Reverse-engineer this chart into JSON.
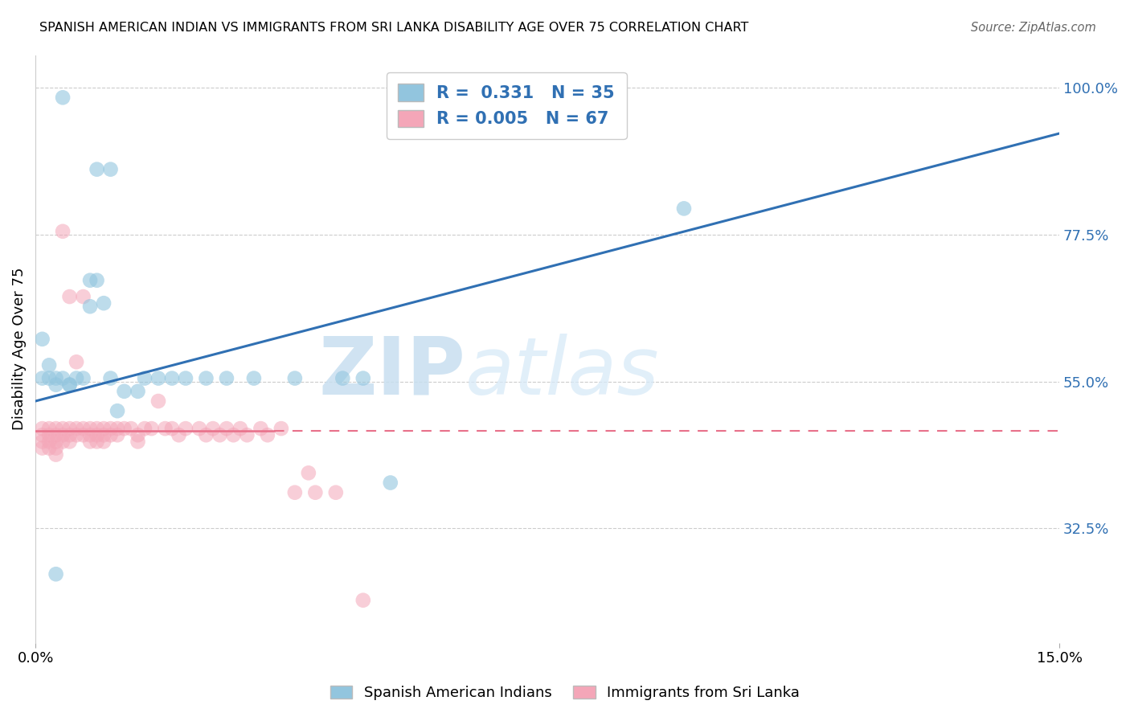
{
  "title": "SPANISH AMERICAN INDIAN VS IMMIGRANTS FROM SRI LANKA DISABILITY AGE OVER 75 CORRELATION CHART",
  "source": "Source: ZipAtlas.com",
  "ylabel_label": "Disability Age Over 75",
  "xmin": 0.0,
  "xmax": 0.15,
  "ymin": 0.15,
  "ymax": 1.05,
  "blue_R": 0.331,
  "blue_N": 35,
  "pink_R": 0.005,
  "pink_N": 67,
  "blue_color": "#92c5de",
  "pink_color": "#f4a6b8",
  "blue_line_color": "#3070b3",
  "pink_line_color": "#e8708a",
  "watermark_zip": "ZIP",
  "watermark_atlas": "atlas",
  "legend_label_blue": "Spanish American Indians",
  "legend_label_pink": "Immigrants from Sri Lanka",
  "ytick_vals": [
    1.0,
    0.775,
    0.55,
    0.325
  ],
  "blue_scatter_x": [
    0.004,
    0.009,
    0.011,
    0.001,
    0.002,
    0.001,
    0.002,
    0.003,
    0.003,
    0.004,
    0.005,
    0.005,
    0.006,
    0.007,
    0.008,
    0.008,
    0.009,
    0.01,
    0.011,
    0.012,
    0.013,
    0.015,
    0.016,
    0.018,
    0.02,
    0.022,
    0.025,
    0.028,
    0.032,
    0.038,
    0.045,
    0.048,
    0.052,
    0.095,
    0.003
  ],
  "blue_scatter_y": [
    0.985,
    0.875,
    0.875,
    0.615,
    0.575,
    0.555,
    0.555,
    0.555,
    0.545,
    0.555,
    0.545,
    0.545,
    0.555,
    0.555,
    0.665,
    0.705,
    0.705,
    0.67,
    0.555,
    0.505,
    0.535,
    0.535,
    0.555,
    0.555,
    0.555,
    0.555,
    0.555,
    0.555,
    0.555,
    0.555,
    0.555,
    0.555,
    0.395,
    0.815,
    0.255
  ],
  "pink_scatter_x": [
    0.001,
    0.001,
    0.001,
    0.001,
    0.002,
    0.002,
    0.002,
    0.002,
    0.003,
    0.003,
    0.003,
    0.003,
    0.003,
    0.004,
    0.004,
    0.004,
    0.004,
    0.005,
    0.005,
    0.005,
    0.005,
    0.006,
    0.006,
    0.006,
    0.007,
    0.007,
    0.007,
    0.008,
    0.008,
    0.008,
    0.009,
    0.009,
    0.009,
    0.01,
    0.01,
    0.01,
    0.011,
    0.011,
    0.012,
    0.012,
    0.013,
    0.014,
    0.015,
    0.015,
    0.016,
    0.017,
    0.018,
    0.019,
    0.02,
    0.021,
    0.022,
    0.024,
    0.025,
    0.026,
    0.027,
    0.028,
    0.029,
    0.03,
    0.031,
    0.033,
    0.034,
    0.036,
    0.038,
    0.04,
    0.041,
    0.044,
    0.048
  ],
  "pink_scatter_y": [
    0.478,
    0.468,
    0.458,
    0.448,
    0.478,
    0.468,
    0.458,
    0.448,
    0.478,
    0.468,
    0.458,
    0.448,
    0.438,
    0.478,
    0.468,
    0.458,
    0.78,
    0.478,
    0.68,
    0.468,
    0.458,
    0.478,
    0.58,
    0.468,
    0.478,
    0.68,
    0.468,
    0.478,
    0.468,
    0.458,
    0.478,
    0.468,
    0.458,
    0.478,
    0.468,
    0.458,
    0.478,
    0.468,
    0.478,
    0.468,
    0.478,
    0.478,
    0.468,
    0.458,
    0.478,
    0.478,
    0.52,
    0.478,
    0.478,
    0.468,
    0.478,
    0.478,
    0.468,
    0.478,
    0.468,
    0.478,
    0.468,
    0.478,
    0.468,
    0.478,
    0.468,
    0.478,
    0.38,
    0.41,
    0.38,
    0.38,
    0.215
  ]
}
